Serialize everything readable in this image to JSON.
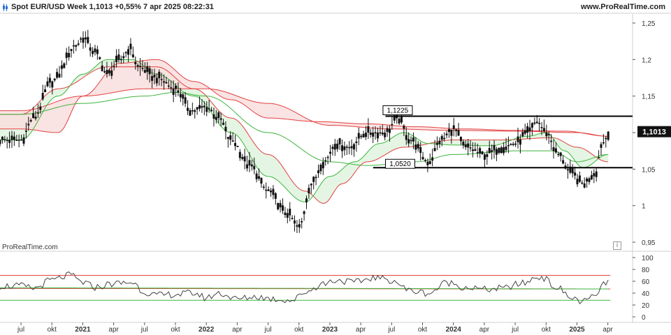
{
  "header": {
    "title": "Spot EUR/USD Week 1,1013 +0,55% 7 apr 2025 08:22:31",
    "site": "www.ProRealTime.com",
    "icon": "candlestick-icon"
  },
  "footer": {
    "watermark": "ProRealTime.com",
    "info_icon": "info-icon",
    "info_glyph": "i"
  },
  "colors": {
    "candle": "#111111",
    "slow_ma": "#e34040",
    "fast_ma": "#3cb53c",
    "ribbon_green": "#dff3df",
    "ribbon_red": "#f9dede",
    "rsi_line": "#444444",
    "price_badge_bg": "#111111",
    "price_badge_fg": "#ffffff"
  },
  "chart_data": [
    {
      "type": "candlestick",
      "title": "Spot EUR/USD Week",
      "ylim": [
        0.95,
        1.25
      ],
      "y_ticks": [
        "1,25",
        "1,2",
        "1,15",
        "1,1",
        "1,05",
        "1",
        "0,95"
      ],
      "y_tick_values": [
        1.25,
        1.2,
        1.15,
        1.1,
        1.05,
        1.0,
        0.95
      ],
      "last_price": "1,1013",
      "last_price_value": 1.1013,
      "annotations": [
        {
          "label": "1,1225",
          "value": 1.1225
        },
        {
          "label": "1,0520",
          "value": 1.052
        }
      ],
      "price_anchors": [
        [
          2020.5,
          1.09
        ],
        [
          2020.6,
          1.12
        ],
        [
          2020.75,
          1.17
        ],
        [
          2020.95,
          1.22
        ],
        [
          2021.0,
          1.23
        ],
        [
          2021.1,
          1.21
        ],
        [
          2021.2,
          1.18
        ],
        [
          2021.3,
          1.2
        ],
        [
          2021.38,
          1.215
        ],
        [
          2021.45,
          1.19
        ],
        [
          2021.6,
          1.175
        ],
        [
          2021.75,
          1.16
        ],
        [
          2021.88,
          1.13
        ],
        [
          2022.0,
          1.135
        ],
        [
          2022.1,
          1.12
        ],
        [
          2022.2,
          1.09
        ],
        [
          2022.35,
          1.055
        ],
        [
          2022.5,
          1.02
        ],
        [
          2022.65,
          0.99
        ],
        [
          2022.75,
          0.97
        ],
        [
          2022.85,
          1.03
        ],
        [
          2022.95,
          1.06
        ],
        [
          2023.05,
          1.085
        ],
        [
          2023.15,
          1.08
        ],
        [
          2023.3,
          1.1
        ],
        [
          2023.45,
          1.1
        ],
        [
          2023.55,
          1.12
        ],
        [
          2023.65,
          1.09
        ],
        [
          2023.8,
          1.06
        ],
        [
          2023.9,
          1.09
        ],
        [
          2024.0,
          1.105
        ],
        [
          2024.1,
          1.08
        ],
        [
          2024.25,
          1.07
        ],
        [
          2024.4,
          1.08
        ],
        [
          2024.5,
          1.085
        ],
        [
          2024.6,
          1.1
        ],
        [
          2024.68,
          1.115
        ],
        [
          2024.75,
          1.1
        ],
        [
          2024.85,
          1.07
        ],
        [
          2024.95,
          1.045
        ],
        [
          2025.05,
          1.03
        ],
        [
          2025.15,
          1.045
        ],
        [
          2025.2,
          1.085
        ],
        [
          2025.27,
          1.1013
        ]
      ],
      "fast_ma_anchors": [
        [
          2020.5,
          1.09
        ],
        [
          2020.8,
          1.15
        ],
        [
          2021.0,
          1.18
        ],
        [
          2021.2,
          1.2
        ],
        [
          2021.4,
          1.2
        ],
        [
          2021.6,
          1.18
        ],
        [
          2021.9,
          1.15
        ],
        [
          2022.2,
          1.1
        ],
        [
          2022.5,
          1.04
        ],
        [
          2022.8,
          1.005
        ],
        [
          2023.0,
          1.04
        ],
        [
          2023.2,
          1.06
        ],
        [
          2023.4,
          1.085
        ],
        [
          2023.6,
          1.1
        ],
        [
          2023.8,
          1.085
        ],
        [
          2024.0,
          1.083
        ],
        [
          2024.3,
          1.082
        ],
        [
          2024.6,
          1.095
        ],
        [
          2024.75,
          1.1
        ],
        [
          2024.9,
          1.075
        ],
        [
          2025.05,
          1.052
        ],
        [
          2025.25,
          1.07
        ]
      ],
      "slow_ma_anchors": [
        [
          2020.5,
          1.105
        ],
        [
          2020.8,
          1.1
        ],
        [
          2021.0,
          1.15
        ],
        [
          2021.3,
          1.195
        ],
        [
          2021.6,
          1.2
        ],
        [
          2021.9,
          1.17
        ],
        [
          2022.2,
          1.145
        ],
        [
          2022.5,
          1.12
        ],
        [
          2022.9,
          1.115
        ],
        [
          2023.3,
          1.112
        ],
        [
          2023.7,
          1.108
        ],
        [
          2024.1,
          1.105
        ],
        [
          2024.5,
          1.103
        ],
        [
          2024.9,
          1.102
        ],
        [
          2025.25,
          1.095
        ]
      ],
      "long_ma_anchors": [
        [
          2020.5,
          1.125
        ],
        [
          2020.8,
          1.16
        ],
        [
          2021.2,
          1.19
        ],
        [
          2021.6,
          1.19
        ],
        [
          2021.9,
          1.16
        ],
        [
          2022.2,
          1.12
        ],
        [
          2022.5,
          1.07
        ],
        [
          2022.8,
          1.02
        ],
        [
          2022.95,
          1.003
        ],
        [
          2023.1,
          1.03
        ],
        [
          2023.3,
          1.06
        ],
        [
          2023.6,
          1.08
        ],
        [
          2024.0,
          1.09
        ],
        [
          2024.4,
          1.09
        ],
        [
          2024.8,
          1.093
        ],
        [
          2025.0,
          1.08
        ],
        [
          2025.25,
          1.06
        ]
      ],
      "support_anchors": [
        [
          2020.5,
          1.13
        ],
        [
          2021.0,
          1.15
        ],
        [
          2021.5,
          1.16
        ],
        [
          2022.0,
          1.16
        ],
        [
          2022.5,
          1.14
        ],
        [
          2023.0,
          1.11
        ],
        [
          2023.5,
          1.105
        ],
        [
          2024.0,
          1.103
        ],
        [
          2024.5,
          1.102
        ],
        [
          2025.0,
          1.1
        ],
        [
          2025.25,
          1.095
        ]
      ],
      "lower_green_anchors": [
        [
          2020.5,
          1.125
        ],
        [
          2021.0,
          1.14
        ],
        [
          2021.5,
          1.15
        ],
        [
          2021.75,
          1.155
        ],
        [
          2022.0,
          1.15
        ],
        [
          2022.5,
          1.1
        ],
        [
          2023.0,
          1.06
        ],
        [
          2023.3,
          1.055
        ],
        [
          2023.7,
          1.06
        ],
        [
          2024.0,
          1.07
        ],
        [
          2024.5,
          1.075
        ],
        [
          2024.8,
          1.075
        ],
        [
          2025.0,
          1.06
        ],
        [
          2025.25,
          1.07
        ]
      ]
    },
    {
      "type": "line",
      "title": "",
      "ylim": [
        0,
        100
      ],
      "y_ticks": [
        "100",
        "80",
        "60",
        "40",
        "20",
        "0"
      ],
      "y_tick_values": [
        100,
        80,
        60,
        40,
        20,
        0
      ],
      "x_ticks": [
        "jul",
        "okt",
        "2021",
        "apr",
        "jul",
        "okt",
        "2022",
        "apr",
        "jul",
        "okt",
        "2023",
        "apr",
        "jul",
        "okt",
        "2024",
        "apr",
        "jul",
        "okt",
        "2025",
        "apr"
      ],
      "x_tick_values": [
        2020.5,
        2020.75,
        2021.0,
        2021.25,
        2021.5,
        2021.75,
        2022.0,
        2022.25,
        2022.5,
        2022.75,
        2023.0,
        2023.25,
        2023.5,
        2023.75,
        2024.0,
        2024.25,
        2024.5,
        2024.75,
        2025.0,
        2025.25
      ],
      "levels": [
        {
          "name": "upper",
          "from": 70,
          "to": 70
        },
        {
          "name": "middle",
          "from": 48,
          "to": 47
        },
        {
          "name": "lower",
          "from": 28,
          "to": 28
        }
      ],
      "anchors": [
        [
          2020.5,
          52
        ],
        [
          2020.6,
          48
        ],
        [
          2020.75,
          62
        ],
        [
          2020.9,
          70
        ],
        [
          2021.0,
          58
        ],
        [
          2021.1,
          50
        ],
        [
          2021.25,
          56
        ],
        [
          2021.4,
          58
        ],
        [
          2021.5,
          42
        ],
        [
          2021.6,
          36
        ],
        [
          2021.75,
          38
        ],
        [
          2021.9,
          40
        ],
        [
          2022.0,
          32
        ],
        [
          2022.1,
          40
        ],
        [
          2022.25,
          30
        ],
        [
          2022.4,
          34
        ],
        [
          2022.55,
          30
        ],
        [
          2022.7,
          28
        ],
        [
          2022.8,
          42
        ],
        [
          2022.95,
          56
        ],
        [
          2023.05,
          62
        ],
        [
          2023.2,
          58
        ],
        [
          2023.35,
          66
        ],
        [
          2023.5,
          62
        ],
        [
          2023.65,
          44
        ],
        [
          2023.8,
          40
        ],
        [
          2023.95,
          58
        ],
        [
          2024.1,
          50
        ],
        [
          2024.25,
          46
        ],
        [
          2024.4,
          48
        ],
        [
          2024.55,
          56
        ],
        [
          2024.7,
          68
        ],
        [
          2024.85,
          48
        ],
        [
          2024.95,
          32
        ],
        [
          2025.05,
          26
        ],
        [
          2025.15,
          34
        ],
        [
          2025.2,
          52
        ],
        [
          2025.27,
          64
        ]
      ]
    }
  ]
}
